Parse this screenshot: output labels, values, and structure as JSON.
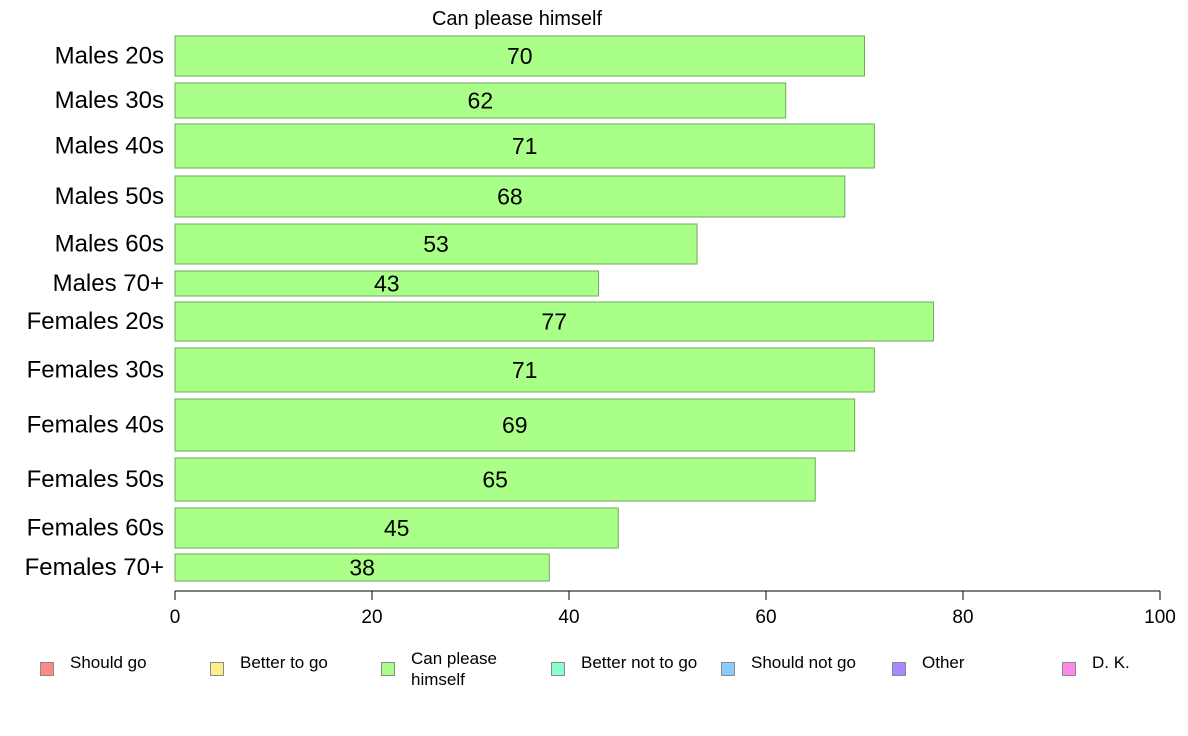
{
  "chart_data": {
    "type": "bar",
    "orientation": "horizontal",
    "title": "Can please himself",
    "categories": [
      "Males 20s",
      "Males 30s",
      "Males 40s",
      "Males 50s",
      "Males 60s",
      "Males 70+",
      "Females 20s",
      "Females 30s",
      "Females 40s",
      "Females 50s",
      "Females 60s",
      "Females 70+"
    ],
    "series": [
      {
        "name": "Can please himself",
        "values": [
          70,
          62,
          71,
          68,
          53,
          43,
          77,
          71,
          69,
          65,
          45,
          38
        ],
        "color": "#aaff88"
      }
    ],
    "xlim": [
      0,
      100
    ],
    "xticks": [
      0,
      20,
      40,
      60,
      80,
      100
    ],
    "xlabel": "",
    "ylabel": "",
    "grid": false,
    "legend_position": "bottom"
  },
  "legend": [
    {
      "label": "Should go",
      "color": "#ff8888"
    },
    {
      "label": "Better to go",
      "color": "#ffee88"
    },
    {
      "label": "Can please himself",
      "color": "#aaff88"
    },
    {
      "label": "Better not to go",
      "color": "#88ffcc"
    },
    {
      "label": "Should not go",
      "color": "#88ccff"
    },
    {
      "label": "Other",
      "color": "#aa88ff"
    },
    {
      "label": "D. K.",
      "color": "#ff88ee"
    }
  ]
}
